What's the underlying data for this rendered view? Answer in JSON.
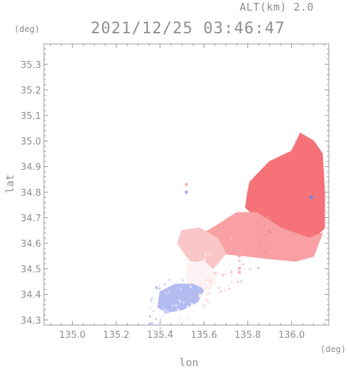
{
  "header": {
    "altitude_label": "ALT(km) 2.0",
    "timestamp": "2021/12/25 03:46:47"
  },
  "axes": {
    "y_unit": "(deg)",
    "x_unit": "(deg)",
    "y_title": "lat",
    "x_title": "lon"
  },
  "colors": {
    "axis": "#9a9a9a",
    "positive": "#f5a8aa",
    "strong_positive": "#f47f84",
    "negative": "#b8bdef",
    "strong_negative": "#8a93e6"
  },
  "chart_data": {
    "type": "heatmap",
    "title": "2021/12/25 03:46:47",
    "subtitle": "ALT(km) 2.0",
    "xlabel": "lon",
    "ylabel": "lat",
    "x_unit": "(deg)",
    "y_unit": "(deg)",
    "xlim": [
      134.87,
      136.17
    ],
    "ylim": [
      34.28,
      35.38
    ],
    "xticks": [
      "135.0",
      "135.2",
      "135.4",
      "135.6",
      "135.8",
      "136.0"
    ],
    "yticks": [
      "34.3",
      "34.4",
      "34.5",
      "34.6",
      "34.7",
      "34.8",
      "34.9",
      "35.0",
      "35.1",
      "35.2",
      "35.3"
    ],
    "grid": false,
    "colorscale": "blue (toward) - white - red (away)",
    "regions": [
      {
        "name": "ne-strong-away",
        "level": 0.85,
        "polygon": [
          [
            135.81,
            34.84
          ],
          [
            135.9,
            34.92
          ],
          [
            136.0,
            34.96
          ],
          [
            136.04,
            35.03
          ],
          [
            136.1,
            35.0
          ],
          [
            136.14,
            34.95
          ],
          [
            136.15,
            34.8
          ],
          [
            136.15,
            34.66
          ],
          [
            136.1,
            34.62
          ],
          [
            136.0,
            34.63
          ],
          [
            135.92,
            34.68
          ],
          [
            135.84,
            34.7
          ],
          [
            135.79,
            34.74
          ],
          [
            135.8,
            34.8
          ]
        ]
      },
      {
        "name": "central-away",
        "level": 0.55,
        "polygon": [
          [
            135.75,
            34.72
          ],
          [
            135.84,
            34.72
          ],
          [
            135.95,
            34.66
          ],
          [
            136.08,
            34.62
          ],
          [
            136.14,
            34.64
          ],
          [
            136.1,
            34.55
          ],
          [
            136.02,
            34.53
          ],
          [
            135.9,
            34.54
          ],
          [
            135.8,
            34.55
          ],
          [
            135.68,
            34.56
          ],
          [
            135.62,
            34.6
          ],
          [
            135.6,
            34.64
          ],
          [
            135.66,
            34.67
          ]
        ]
      },
      {
        "name": "sw-weak-away",
        "level": 0.3,
        "polygon": [
          [
            135.5,
            34.65
          ],
          [
            135.58,
            34.66
          ],
          [
            135.66,
            34.62
          ],
          [
            135.7,
            34.56
          ],
          [
            135.64,
            34.5
          ],
          [
            135.57,
            34.5
          ],
          [
            135.52,
            34.55
          ],
          [
            135.48,
            34.6
          ]
        ]
      },
      {
        "name": "near-zero",
        "level": 0.0,
        "polygon": [
          [
            135.52,
            34.52
          ],
          [
            135.6,
            34.53
          ],
          [
            135.66,
            34.48
          ],
          [
            135.63,
            34.42
          ],
          [
            135.56,
            34.42
          ],
          [
            135.52,
            34.46
          ]
        ]
      },
      {
        "name": "sw-toward",
        "level": -0.45,
        "polygon": [
          [
            135.4,
            34.41
          ],
          [
            135.47,
            34.44
          ],
          [
            135.55,
            34.44
          ],
          [
            135.6,
            34.42
          ],
          [
            135.57,
            34.37
          ],
          [
            135.5,
            34.34
          ],
          [
            135.43,
            34.33
          ],
          [
            135.39,
            34.35
          ]
        ]
      }
    ]
  }
}
